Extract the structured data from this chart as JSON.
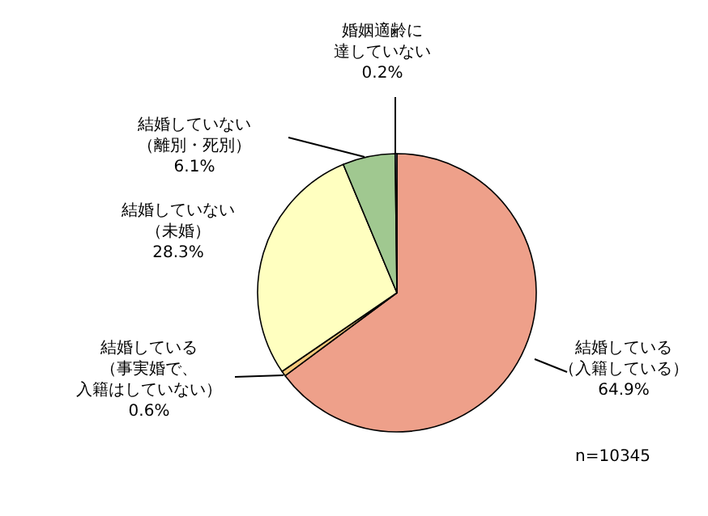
{
  "chart_data": {
    "type": "pie",
    "categories": [
      "結婚している（入籍している）",
      "結婚している（事実婚で、入籍はしていない）",
      "結婚していない（未婚）",
      "結婚していない（離別・死別）",
      "婚姻適齢に達していない"
    ],
    "values": [
      64.9,
      0.6,
      28.3,
      6.1,
      0.2
    ],
    "value_labels": [
      "64.9%",
      "0.6%",
      "28.3%",
      "6.1%",
      "0.2%"
    ],
    "colors": [
      "#eea08a",
      "#f5c87a",
      "#ffffc0",
      "#a0c890",
      "#9aaec8"
    ],
    "annotations": [
      "n=10345"
    ]
  }
}
